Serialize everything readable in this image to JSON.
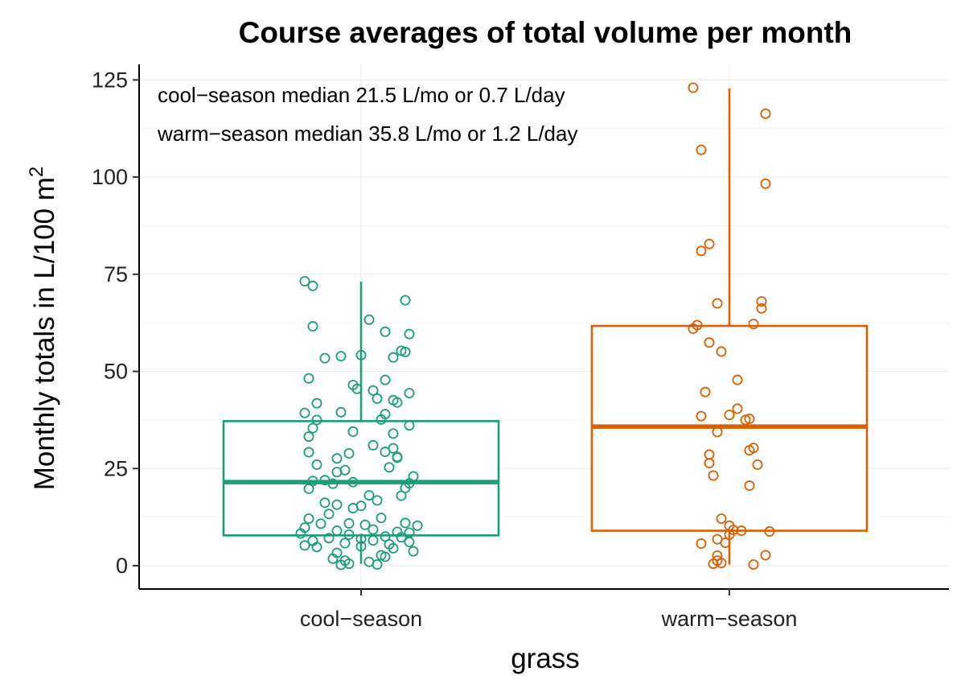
{
  "chart_data": {
    "type": "box",
    "title": "Course averages of total volume per month",
    "xlabel": "grass",
    "ylabel_main": "Monthly totals in L/100 m",
    "ylabel_superscript": "2",
    "ylim": [
      -6,
      129
    ],
    "yticks": [
      0,
      25,
      50,
      75,
      100,
      125
    ],
    "grid": true,
    "annotations": [
      "cool−season median 21.5 L/mo or 0.7 L/day",
      "warm−season median 35.8 L/mo or 1.2 L/day"
    ],
    "categories": [
      "cool−season",
      "warm−season"
    ],
    "colors": [
      "#1b9e77",
      "#d95f02"
    ],
    "boxes": [
      {
        "name": "cool−season",
        "min": 0.5,
        "q1": 7.8,
        "median": 21.5,
        "q3": 37.2,
        "max": 73.1,
        "points": [
          [
            -0.14,
            73.2
          ],
          [
            -0.12,
            72.0
          ],
          [
            0.11,
            68.3
          ],
          [
            0.02,
            63.3
          ],
          [
            -0.12,
            61.6
          ],
          [
            0.06,
            60.2
          ],
          [
            0.12,
            59.6
          ],
          [
            0.1,
            55.3
          ],
          [
            -0.09,
            53.4
          ],
          [
            -0.05,
            53.9
          ],
          [
            0.0,
            54.2
          ],
          [
            0.08,
            53.6
          ],
          [
            -0.13,
            48.2
          ],
          [
            0.06,
            47.8
          ],
          [
            -0.02,
            46.5
          ],
          [
            0.03,
            45.1
          ],
          [
            0.08,
            42.6
          ],
          [
            -0.11,
            41.8
          ],
          [
            0.12,
            44.4
          ],
          [
            0.04,
            43.0
          ],
          [
            -0.14,
            39.3
          ],
          [
            -0.05,
            39.5
          ],
          [
            -0.11,
            37.5
          ],
          [
            0.05,
            37.6
          ],
          [
            0.12,
            36.1
          ],
          [
            -0.12,
            35.4
          ],
          [
            -0.02,
            34.5
          ],
          [
            0.08,
            34.0
          ],
          [
            -0.13,
            33.2
          ],
          [
            0.03,
            31.0
          ],
          [
            0.08,
            30.2
          ],
          [
            -0.03,
            28.9
          ],
          [
            0.06,
            29.3
          ],
          [
            0.09,
            27.8
          ],
          [
            -0.13,
            29.2
          ],
          [
            -0.06,
            27.6
          ],
          [
            0.07,
            25.3
          ],
          [
            -0.04,
            24.6
          ],
          [
            -0.06,
            24.1
          ],
          [
            0.13,
            23.0
          ],
          [
            -0.12,
            21.8
          ],
          [
            -0.02,
            21.5
          ],
          [
            0.12,
            21.2
          ],
          [
            -0.07,
            21.1
          ],
          [
            0.11,
            20.0
          ],
          [
            -0.13,
            19.8
          ],
          [
            0.02,
            18.1
          ],
          [
            0.1,
            18.0
          ],
          [
            0.04,
            16.8
          ],
          [
            -0.09,
            16.2
          ],
          [
            -0.06,
            15.7
          ],
          [
            0.0,
            15.4
          ],
          [
            -0.02,
            14.8
          ],
          [
            -0.08,
            13.3
          ],
          [
            0.05,
            12.3
          ],
          [
            -0.13,
            12.1
          ],
          [
            0.11,
            11.0
          ],
          [
            -0.1,
            10.8
          ],
          [
            -0.03,
            10.9
          ],
          [
            0.01,
            10.5
          ],
          [
            0.14,
            10.3
          ],
          [
            -0.14,
            9.8
          ],
          [
            0.03,
            9.3
          ],
          [
            -0.06,
            9.0
          ],
          [
            0.09,
            8.7
          ],
          [
            0.12,
            8.5
          ],
          [
            -0.15,
            8.3
          ],
          [
            -0.03,
            8.0
          ],
          [
            0.06,
            7.5
          ],
          [
            0.1,
            7.3
          ],
          [
            -0.08,
            7.1
          ],
          [
            0.0,
            6.9
          ],
          [
            0.03,
            6.5
          ],
          [
            -0.12,
            6.4
          ],
          [
            0.12,
            6.1
          ],
          [
            -0.04,
            5.8
          ],
          [
            0.07,
            5.5
          ],
          [
            -0.14,
            5.2
          ],
          [
            0.0,
            5.0
          ],
          [
            -0.11,
            4.8
          ],
          [
            0.08,
            4.5
          ],
          [
            0.13,
            3.7
          ],
          [
            -0.06,
            3.3
          ],
          [
            0.05,
            2.7
          ],
          [
            0.06,
            2.3
          ],
          [
            -0.04,
            1.3
          ],
          [
            -0.07,
            1.8
          ],
          [
            0.02,
            1.0
          ],
          [
            -0.03,
            0.5
          ],
          [
            0.04,
            0.3
          ],
          [
            -0.05,
            0.2
          ],
          [
            0.09,
            42.0
          ],
          [
            -0.01,
            45.5
          ],
          [
            0.11,
            55.0
          ],
          [
            0.06,
            39.0
          ],
          [
            -0.09,
            22.0
          ],
          [
            0.09,
            28.0
          ],
          [
            -0.11,
            26.0
          ]
        ]
      },
      {
        "name": "warm−season",
        "min": 0.3,
        "q1": 9.0,
        "median": 35.8,
        "q3": 61.7,
        "max": 122.8,
        "points": [
          [
            -0.09,
            123.0
          ],
          [
            0.09,
            116.3
          ],
          [
            -0.07,
            107.0
          ],
          [
            0.09,
            98.3
          ],
          [
            -0.05,
            82.8
          ],
          [
            -0.07,
            81.0
          ],
          [
            0.08,
            68.0
          ],
          [
            -0.03,
            67.5
          ],
          [
            0.08,
            66.2
          ],
          [
            -0.08,
            61.9
          ],
          [
            0.06,
            62.2
          ],
          [
            -0.09,
            61.0
          ],
          [
            -0.05,
            57.4
          ],
          [
            -0.02,
            55.1
          ],
          [
            0.02,
            47.8
          ],
          [
            -0.06,
            44.7
          ],
          [
            0.02,
            40.4
          ],
          [
            -0.07,
            38.5
          ],
          [
            0.0,
            38.8
          ],
          [
            0.04,
            37.5
          ],
          [
            0.05,
            37.8
          ],
          [
            -0.03,
            34.4
          ],
          [
            0.06,
            30.3
          ],
          [
            0.05,
            29.7
          ],
          [
            -0.05,
            28.6
          ],
          [
            -0.05,
            26.4
          ],
          [
            0.07,
            26.0
          ],
          [
            -0.04,
            23.2
          ],
          [
            0.05,
            20.6
          ],
          [
            -0.02,
            12.1
          ],
          [
            0.0,
            10.3
          ],
          [
            0.01,
            9.2
          ],
          [
            0.03,
            9.0
          ],
          [
            0.1,
            8.8
          ],
          [
            0.0,
            8.0
          ],
          [
            -0.03,
            6.8
          ],
          [
            -0.07,
            5.7
          ],
          [
            -0.01,
            5.9
          ],
          [
            0.09,
            2.7
          ],
          [
            -0.03,
            2.6
          ],
          [
            -0.03,
            1.3
          ],
          [
            -0.02,
            0.7
          ],
          [
            -0.04,
            0.5
          ],
          [
            0.06,
            0.3
          ]
        ]
      }
    ]
  }
}
